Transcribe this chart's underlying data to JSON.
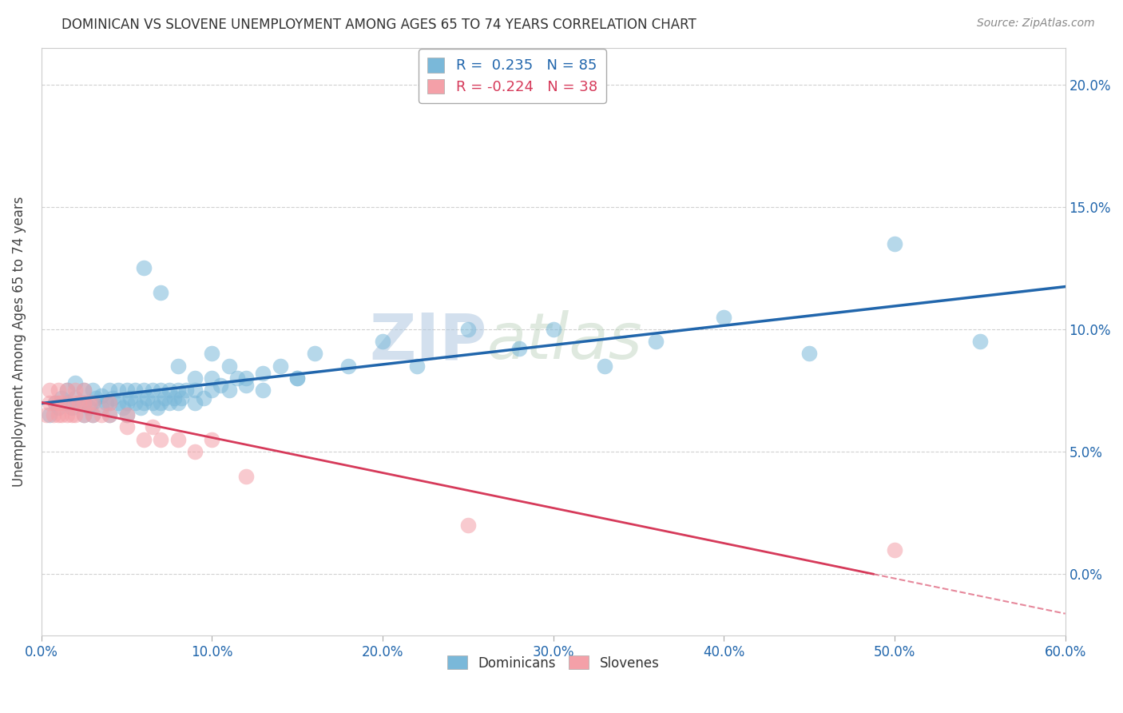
{
  "title": "DOMINICAN VS SLOVENE UNEMPLOYMENT AMONG AGES 65 TO 74 YEARS CORRELATION CHART",
  "source": "Source: ZipAtlas.com",
  "xlim": [
    0.0,
    0.6
  ],
  "ylim": [
    -0.025,
    0.215
  ],
  "watermark_zip": "ZIP",
  "watermark_atlas": "atlas",
  "legend_r1": "R =  0.235   N = 85",
  "legend_r2": "R = -0.224   N = 38",
  "blue_color": "#7ab8d9",
  "pink_color": "#f4a0a8",
  "blue_line_color": "#2166ac",
  "pink_line_color": "#d63a5a",
  "background_color": "#ffffff",
  "grid_color": "#cccccc",
  "dom_x": [
    0.005,
    0.008,
    0.01,
    0.012,
    0.015,
    0.015,
    0.018,
    0.02,
    0.02,
    0.022,
    0.025,
    0.025,
    0.025,
    0.028,
    0.03,
    0.03,
    0.03,
    0.032,
    0.035,
    0.035,
    0.038,
    0.04,
    0.04,
    0.04,
    0.042,
    0.045,
    0.045,
    0.048,
    0.05,
    0.05,
    0.05,
    0.052,
    0.055,
    0.055,
    0.058,
    0.06,
    0.06,
    0.062,
    0.065,
    0.065,
    0.068,
    0.07,
    0.07,
    0.072,
    0.075,
    0.075,
    0.078,
    0.08,
    0.08,
    0.082,
    0.085,
    0.09,
    0.09,
    0.095,
    0.1,
    0.1,
    0.105,
    0.11,
    0.115,
    0.12,
    0.13,
    0.14,
    0.15,
    0.16,
    0.18,
    0.2,
    0.22,
    0.25,
    0.28,
    0.3,
    0.33,
    0.36,
    0.4,
    0.45,
    0.5,
    0.55,
    0.06,
    0.07,
    0.08,
    0.09,
    0.1,
    0.11,
    0.12,
    0.13,
    0.15
  ],
  "dom_y": [
    0.065,
    0.07,
    0.068,
    0.072,
    0.07,
    0.075,
    0.068,
    0.072,
    0.078,
    0.07,
    0.065,
    0.07,
    0.075,
    0.068,
    0.065,
    0.07,
    0.075,
    0.072,
    0.068,
    0.073,
    0.07,
    0.065,
    0.07,
    0.075,
    0.072,
    0.07,
    0.075,
    0.068,
    0.065,
    0.07,
    0.075,
    0.072,
    0.07,
    0.075,
    0.068,
    0.07,
    0.075,
    0.072,
    0.07,
    0.075,
    0.068,
    0.07,
    0.075,
    0.072,
    0.07,
    0.075,
    0.072,
    0.07,
    0.075,
    0.072,
    0.075,
    0.07,
    0.075,
    0.072,
    0.075,
    0.08,
    0.077,
    0.075,
    0.08,
    0.077,
    0.082,
    0.085,
    0.08,
    0.09,
    0.085,
    0.095,
    0.085,
    0.1,
    0.092,
    0.1,
    0.085,
    0.095,
    0.105,
    0.09,
    0.135,
    0.095,
    0.125,
    0.115,
    0.085,
    0.08,
    0.09,
    0.085,
    0.08,
    0.075,
    0.08
  ],
  "slo_x": [
    0.003,
    0.005,
    0.005,
    0.007,
    0.008,
    0.01,
    0.01,
    0.01,
    0.012,
    0.012,
    0.015,
    0.015,
    0.015,
    0.018,
    0.02,
    0.02,
    0.02,
    0.022,
    0.025,
    0.025,
    0.025,
    0.028,
    0.03,
    0.03,
    0.035,
    0.04,
    0.04,
    0.05,
    0.05,
    0.06,
    0.065,
    0.07,
    0.08,
    0.09,
    0.1,
    0.12,
    0.25,
    0.5
  ],
  "slo_y": [
    0.065,
    0.07,
    0.075,
    0.065,
    0.07,
    0.065,
    0.07,
    0.075,
    0.065,
    0.07,
    0.065,
    0.07,
    0.075,
    0.065,
    0.065,
    0.07,
    0.075,
    0.07,
    0.065,
    0.07,
    0.075,
    0.07,
    0.065,
    0.07,
    0.065,
    0.065,
    0.07,
    0.06,
    0.065,
    0.055,
    0.06,
    0.055,
    0.055,
    0.05,
    0.055,
    0.04,
    0.02,
    0.01
  ],
  "title_fontsize": 12,
  "tick_fontsize": 12,
  "ylabel_fontsize": 12
}
